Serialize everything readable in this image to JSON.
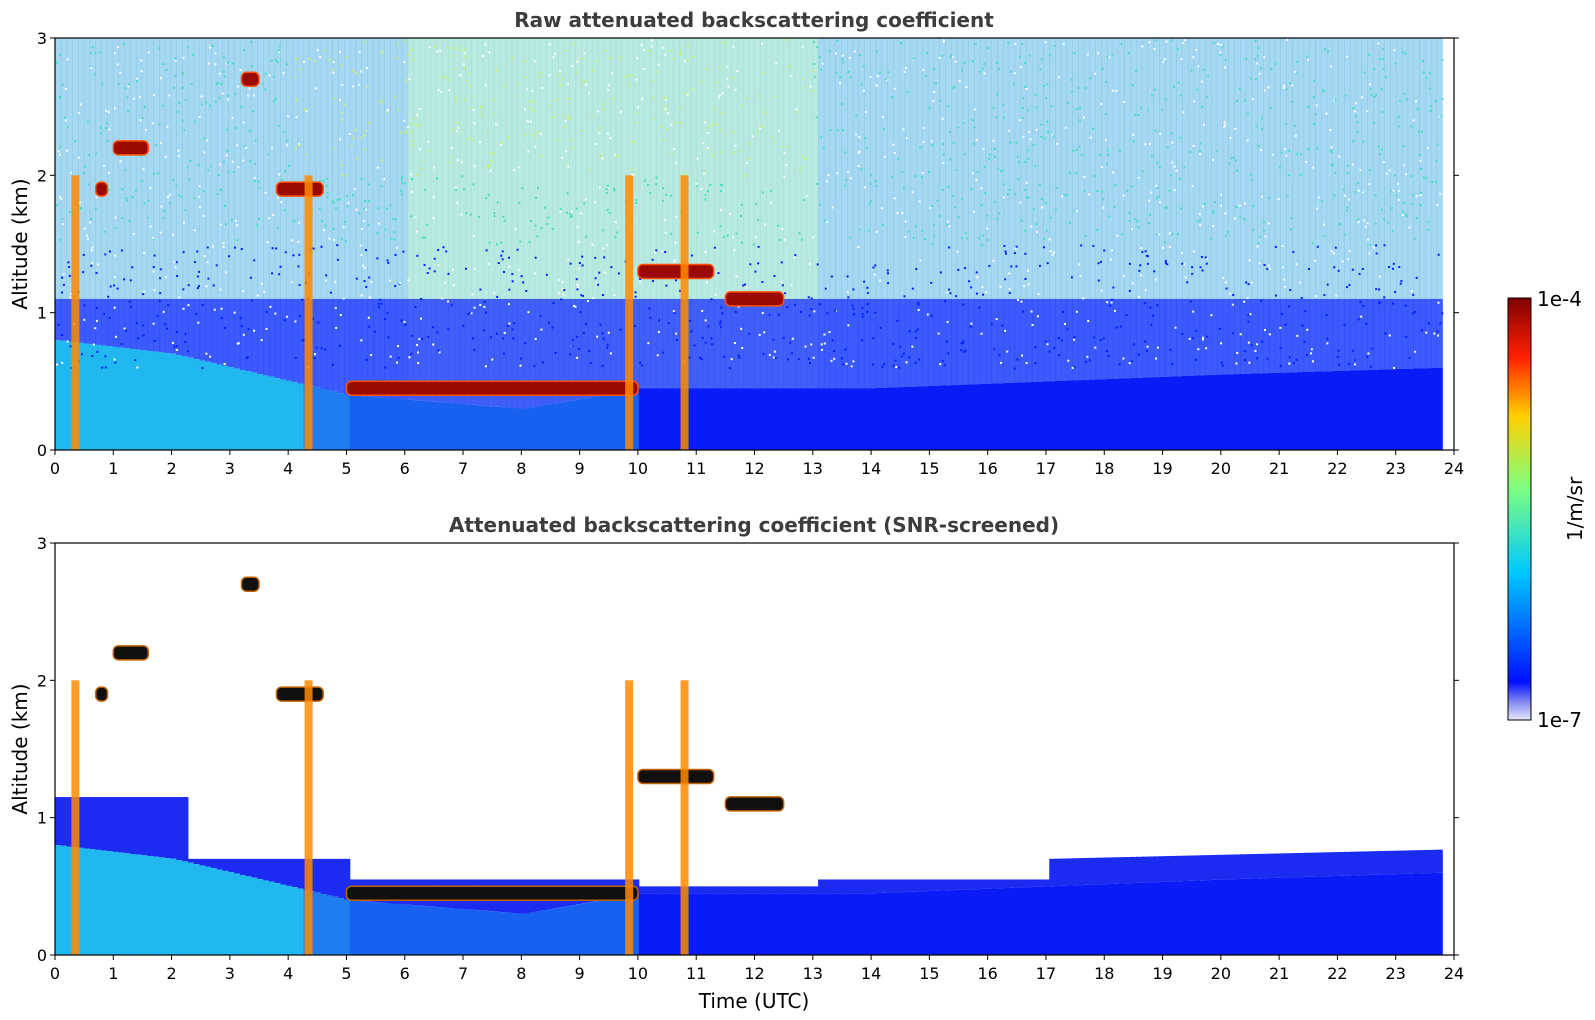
{
  "chart_data": [
    {
      "type": "heatmap",
      "title": "Raw attenuated backscattering coefficient",
      "xlabel": "",
      "ylabel": "Altitude (km)",
      "xlim": [
        0,
        24
      ],
      "ylim": [
        0,
        3
      ],
      "xticks": [
        "0",
        "1",
        "2",
        "3",
        "4",
        "5",
        "6",
        "7",
        "8",
        "9",
        "10",
        "11",
        "12",
        "13",
        "14",
        "15",
        "16",
        "17",
        "18",
        "19",
        "20",
        "21",
        "22",
        "23",
        "24"
      ],
      "yticks": [
        "0",
        "1",
        "2",
        "3"
      ],
      "features": {
        "boundary_layer": [
          [
            0,
            0.8
          ],
          [
            2,
            0.7
          ],
          [
            3,
            0.6
          ],
          [
            4,
            0.5
          ],
          [
            5,
            0.4
          ],
          [
            8,
            0.3
          ],
          [
            10,
            0.45
          ],
          [
            14,
            0.45
          ],
          [
            17,
            0.5
          ],
          [
            20,
            0.55
          ],
          [
            23.8,
            0.6
          ]
        ],
        "cloud_layers": [
          {
            "x": [
              1.0,
              1.6
            ],
            "y": 2.2
          },
          {
            "x": [
              0.7,
              0.9
            ],
            "y": 1.9
          },
          {
            "x": [
              3.8,
              4.6
            ],
            "y": 1.9
          },
          {
            "x": [
              3.2,
              3.5
            ],
            "y": 2.7
          },
          {
            "x": [
              5.0,
              10.0
            ],
            "y": 0.45
          },
          {
            "x": [
              10.0,
              11.3
            ],
            "y": 1.3
          },
          {
            "x": [
              11.5,
              12.5
            ],
            "y": 1.1
          }
        ],
        "rain_columns": [
          0.35,
          4.35,
          9.85,
          10.8
        ]
      }
    },
    {
      "type": "heatmap",
      "title": "Attenuated backscattering coefficient (SNR-screened)",
      "xlabel": "Time (UTC)",
      "ylabel": "Altitude (km)",
      "xlim": [
        0,
        24
      ],
      "ylim": [
        0,
        3
      ],
      "xticks": [
        "0",
        "1",
        "2",
        "3",
        "4",
        "5",
        "6",
        "7",
        "8",
        "9",
        "10",
        "11",
        "12",
        "13",
        "14",
        "15",
        "16",
        "17",
        "18",
        "19",
        "20",
        "21",
        "22",
        "23",
        "24"
      ],
      "yticks": [
        "0",
        "1",
        "2",
        "3"
      ]
    }
  ],
  "colorbar": {
    "label": "1/m/sr",
    "max_label": "1e-4",
    "min_label": "1e-7",
    "scale": "log",
    "colormap": "jet",
    "colors": [
      "#e8e8f8",
      "#0010ff",
      "#00c8ff",
      "#7fff80",
      "#ffd000",
      "#ff2000",
      "#800000"
    ]
  }
}
